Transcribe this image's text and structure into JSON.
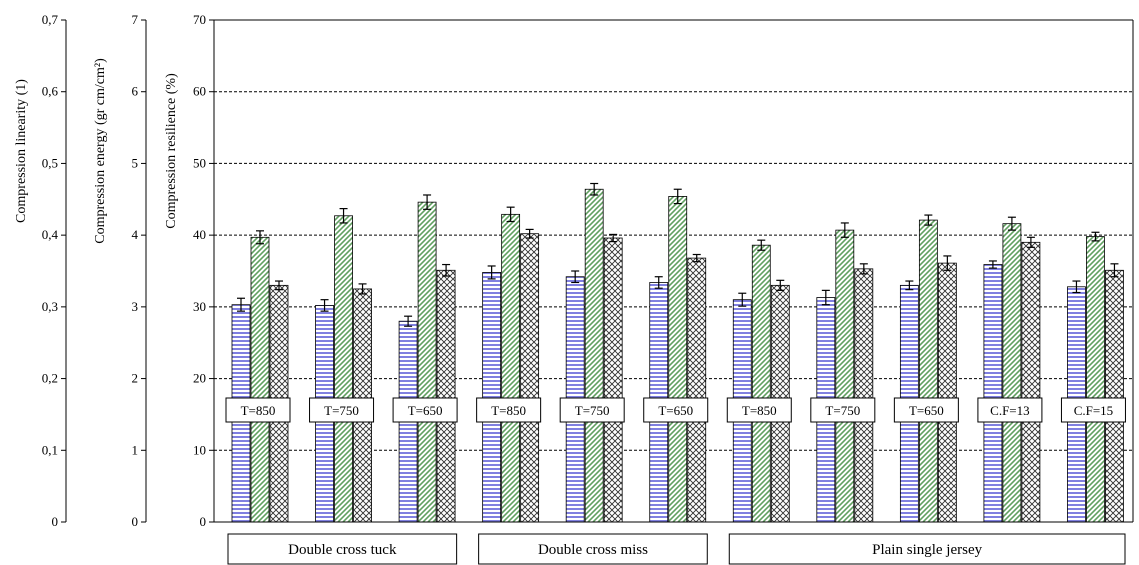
{
  "chart_data": {
    "type": "bar",
    "axes": [
      {
        "title": "Compression linearity (1)",
        "ticks": [
          "0",
          "0,1",
          "0,2",
          "0,3",
          "0,4",
          "0,5",
          "0,6",
          "0,7"
        ]
      },
      {
        "title": "Compression energy (gr cm/cm²)",
        "ticks": [
          "0",
          "1",
          "2",
          "3",
          "4",
          "5",
          "6",
          "7"
        ]
      },
      {
        "title": "Compression resilience (%)",
        "ticks": [
          "0",
          "10",
          "20",
          "30",
          "40",
          "50",
          "60",
          "70"
        ]
      }
    ],
    "ylim": [
      0,
      70
    ],
    "grid": "horizontal dashed at 10, 20, 30, 40, 50, 60",
    "categories": [
      "T=850",
      "T=750",
      "T=650",
      "T=850",
      "T=750",
      "T=650",
      "T=850",
      "T=750",
      "T=650",
      "C.F=13",
      "C.F=15"
    ],
    "groups": [
      {
        "label": "Double cross tuck",
        "categories": [
          0,
          2
        ]
      },
      {
        "label": "Double cross miss",
        "categories": [
          3,
          5
        ]
      },
      {
        "label": "Plain single jersey",
        "categories": [
          6,
          10
        ]
      }
    ],
    "series": [
      {
        "fill": "horizontal-stripes",
        "color": "#8080e0",
        "values": [
          30.3,
          30.2,
          28.0,
          34.8,
          34.2,
          33.4,
          31.0,
          31.3,
          33.0,
          35.9,
          32.8
        ],
        "errors": [
          0.9,
          0.8,
          0.7,
          0.9,
          0.8,
          0.8,
          0.9,
          1.0,
          0.6,
          0.5,
          0.8
        ]
      },
      {
        "fill": "diagonal-stripes",
        "color": "#60a060",
        "values": [
          39.7,
          42.7,
          44.6,
          42.9,
          46.4,
          45.4,
          38.6,
          40.7,
          42.1,
          41.6,
          39.8
        ],
        "errors": [
          0.9,
          1.0,
          1.0,
          1.0,
          0.8,
          1.0,
          0.7,
          1.0,
          0.7,
          0.9,
          0.6
        ]
      },
      {
        "fill": "crosshatch",
        "color": "#303030",
        "values": [
          33.0,
          32.5,
          35.1,
          40.2,
          39.6,
          36.8,
          33.0,
          35.3,
          36.1,
          39.0,
          35.1
        ],
        "errors": [
          0.6,
          0.7,
          0.8,
          0.6,
          0.5,
          0.5,
          0.7,
          0.7,
          1.0,
          0.7,
          0.9
        ]
      }
    ]
  }
}
